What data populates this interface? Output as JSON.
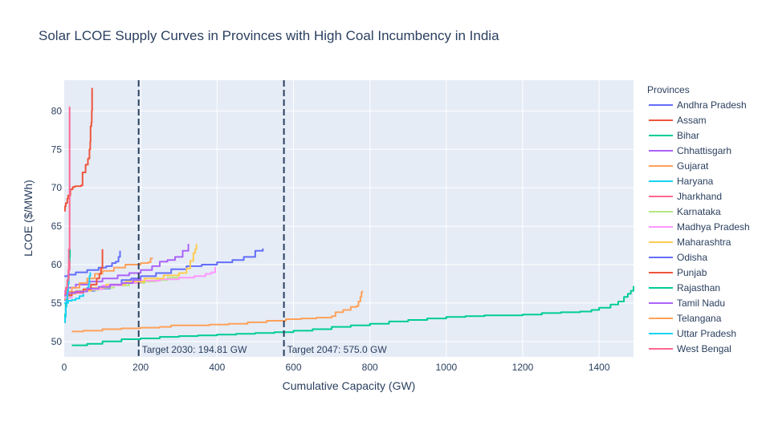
{
  "chart_data": {
    "type": "line",
    "title": "Solar LCOE Supply Curves in Provinces with High Coal Incumbency in India",
    "xlabel": "Cumulative Capacity (GW)",
    "ylabel": "LCOE ($/MWh)",
    "xlim": [
      0,
      1490
    ],
    "ylim": [
      48,
      84
    ],
    "xticks": [
      0,
      200,
      400,
      600,
      800,
      1000,
      1200,
      1400
    ],
    "yticks": [
      50,
      55,
      60,
      65,
      70,
      75,
      80
    ],
    "grid": true,
    "legend_title": "Provinces",
    "legend_position": "right",
    "background_color": "#e5ecf6",
    "vlines": [
      {
        "x": 194.81,
        "label": "Target 2030: 194.81 GW",
        "color": "#2a3f5f",
        "dash": "dashed"
      },
      {
        "x": 575.0,
        "label": "Target 2047: 575.0 GW",
        "color": "#2a3f5f",
        "dash": "dashed"
      }
    ],
    "series": [
      {
        "name": "Andhra Pradesh",
        "color": "#636efa",
        "points": [
          [
            0,
            55.4
          ],
          [
            5,
            56.0
          ],
          [
            15,
            56.4
          ],
          [
            40,
            56.6
          ],
          [
            80,
            56.9
          ],
          [
            120,
            57.3
          ],
          [
            150,
            58.0
          ],
          [
            175,
            58.2
          ],
          [
            200,
            58.5
          ],
          [
            240,
            58.9
          ],
          [
            280,
            59.4
          ],
          [
            320,
            59.8
          ],
          [
            360,
            60.0
          ],
          [
            400,
            60.3
          ],
          [
            440,
            60.6
          ],
          [
            470,
            61.0
          ],
          [
            500,
            61.8
          ],
          [
            520,
            62.1
          ]
        ]
      },
      {
        "name": "Assam",
        "color": "#ef553b",
        "points": [
          [
            0,
            67.0
          ],
          [
            2,
            67.6
          ],
          [
            4,
            68.0
          ],
          [
            8,
            68.6
          ],
          [
            10,
            69.0
          ],
          [
            16,
            69.8
          ],
          [
            22,
            70.1
          ],
          [
            28,
            70.2
          ],
          [
            36,
            70.2
          ],
          [
            44,
            70.3
          ],
          [
            48,
            72.0
          ],
          [
            56,
            73.0
          ],
          [
            62,
            73.8
          ],
          [
            66,
            75.0
          ],
          [
            68,
            76.0
          ],
          [
            69,
            78.0
          ],
          [
            71,
            78.5
          ],
          [
            72,
            80.0
          ],
          [
            73,
            83.0
          ]
        ]
      },
      {
        "name": "Bihar",
        "color": "#00cc96",
        "points": [
          [
            0,
            52.5
          ],
          [
            2,
            53.5
          ],
          [
            4,
            55.0
          ],
          [
            6,
            56.5
          ],
          [
            8,
            57.5
          ],
          [
            10,
            58.5
          ],
          [
            12,
            59.5
          ],
          [
            14,
            61.0
          ],
          [
            15,
            62.0
          ]
        ]
      },
      {
        "name": "Chhattisgarh",
        "color": "#ab63fa",
        "points": [
          [
            0,
            56.5
          ],
          [
            10,
            57.0
          ],
          [
            30,
            57.4
          ],
          [
            60,
            57.8
          ],
          [
            100,
            58.2
          ],
          [
            140,
            58.6
          ],
          [
            170,
            58.9
          ],
          [
            200,
            59.3
          ],
          [
            230,
            59.8
          ],
          [
            250,
            60.4
          ],
          [
            270,
            60.6
          ],
          [
            290,
            61.0
          ],
          [
            310,
            61.8
          ],
          [
            325,
            62.7
          ]
        ]
      },
      {
        "name": "Gujarat",
        "color": "#ffa15a",
        "points": [
          [
            0,
            55.5
          ],
          [
            10,
            56.5
          ],
          [
            20,
            57.0
          ],
          [
            40,
            57.6
          ],
          [
            60,
            58.2
          ],
          [
            80,
            58.8
          ],
          [
            100,
            59.2
          ],
          [
            130,
            59.6
          ],
          [
            160,
            60.0
          ],
          [
            200,
            60.2
          ],
          [
            220,
            60.3
          ],
          [
            226,
            60.8
          ],
          [
            232,
            60.8
          ]
        ]
      },
      {
        "name": "Haryana",
        "color": "#19d3f3",
        "points": [
          [
            0,
            55.0
          ],
          [
            10,
            55.3
          ],
          [
            20,
            55.4
          ],
          [
            30,
            55.6
          ],
          [
            40,
            55.9
          ],
          [
            50,
            56.5
          ],
          [
            60,
            57.0
          ],
          [
            64,
            57.5
          ],
          [
            66,
            58.5
          ],
          [
            68,
            59.0
          ]
        ]
      },
      {
        "name": "Jharkhand",
        "color": "#ff6692",
        "points": [
          [
            0,
            56.0
          ],
          [
            6,
            57.0
          ],
          [
            10,
            58.0
          ],
          [
            12,
            62.0
          ],
          [
            14,
            80.5
          ],
          [
            15,
            80.5
          ]
        ]
      },
      {
        "name": "Karnataka",
        "color": "#b6e880",
        "points": [
          [
            0,
            55.8
          ],
          [
            20,
            56.3
          ],
          [
            50,
            56.7
          ],
          [
            90,
            57.0
          ],
          [
            130,
            57.3
          ],
          [
            170,
            57.6
          ],
          [
            210,
            57.8
          ],
          [
            240,
            58.0
          ],
          [
            270,
            58.3
          ],
          [
            300,
            58.8
          ]
        ]
      },
      {
        "name": "Madhya Pradesh",
        "color": "#ff97ff",
        "points": [
          [
            0,
            55.7
          ],
          [
            20,
            56.3
          ],
          [
            50,
            56.8
          ],
          [
            100,
            57.3
          ],
          [
            150,
            57.6
          ],
          [
            200,
            57.9
          ],
          [
            250,
            58.1
          ],
          [
            300,
            58.3
          ],
          [
            340,
            58.5
          ],
          [
            370,
            58.8
          ],
          [
            385,
            59.0
          ],
          [
            395,
            59.7
          ]
        ]
      },
      {
        "name": "Maharashtra",
        "color": "#fecb52",
        "points": [
          [
            0,
            56.2
          ],
          [
            30,
            56.6
          ],
          [
            70,
            57.0
          ],
          [
            110,
            57.4
          ],
          [
            160,
            57.8
          ],
          [
            210,
            58.2
          ],
          [
            260,
            58.6
          ],
          [
            300,
            58.9
          ],
          [
            320,
            59.5
          ],
          [
            330,
            60.5
          ],
          [
            338,
            61.5
          ],
          [
            343,
            62.0
          ],
          [
            346,
            62.7
          ]
        ]
      },
      {
        "name": "Odisha",
        "color": "#636efa",
        "points": [
          [
            0,
            58.5
          ],
          [
            10,
            58.7
          ],
          [
            30,
            59.0
          ],
          [
            60,
            59.3
          ],
          [
            90,
            59.6
          ],
          [
            110,
            59.8
          ],
          [
            125,
            60.2
          ],
          [
            135,
            60.4
          ],
          [
            142,
            61.0
          ],
          [
            146,
            61.8
          ]
        ]
      },
      {
        "name": "Punjab",
        "color": "#ef553b",
        "points": [
          [
            0,
            56.0
          ],
          [
            20,
            56.4
          ],
          [
            50,
            56.8
          ],
          [
            70,
            57.4
          ],
          [
            85,
            58.2
          ],
          [
            92,
            58.8
          ],
          [
            96,
            59.5
          ],
          [
            100,
            62.0
          ]
        ]
      },
      {
        "name": "Rajasthan",
        "color": "#00cc96",
        "points": [
          [
            20,
            49.5
          ],
          [
            60,
            49.7
          ],
          [
            100,
            50.0
          ],
          [
            150,
            50.3
          ],
          [
            200,
            50.4
          ],
          [
            250,
            50.6
          ],
          [
            300,
            50.7
          ],
          [
            350,
            50.8
          ],
          [
            400,
            50.9
          ],
          [
            450,
            51.0
          ],
          [
            500,
            51.1
          ],
          [
            550,
            51.2
          ],
          [
            600,
            51.4
          ],
          [
            650,
            51.6
          ],
          [
            700,
            51.9
          ],
          [
            750,
            52.1
          ],
          [
            800,
            52.3
          ],
          [
            850,
            52.6
          ],
          [
            900,
            52.8
          ],
          [
            950,
            53.0
          ],
          [
            1000,
            53.2
          ],
          [
            1050,
            53.3
          ],
          [
            1100,
            53.4
          ],
          [
            1150,
            53.4
          ],
          [
            1200,
            53.5
          ],
          [
            1250,
            53.7
          ],
          [
            1300,
            53.8
          ],
          [
            1350,
            53.9
          ],
          [
            1380,
            54.1
          ],
          [
            1400,
            54.4
          ],
          [
            1430,
            54.8
          ],
          [
            1450,
            55.2
          ],
          [
            1465,
            55.8
          ],
          [
            1475,
            56.2
          ],
          [
            1483,
            56.6
          ],
          [
            1490,
            57.2
          ]
        ]
      },
      {
        "name": "Tamil Nadu",
        "color": "#ab63fa",
        "points": [
          [
            0,
            56.0
          ],
          [
            10,
            56.3
          ],
          [
            30,
            56.5
          ],
          [
            60,
            56.9
          ],
          [
            90,
            57.1
          ],
          [
            120,
            57.4
          ],
          [
            150,
            57.6
          ],
          [
            180,
            58.0
          ],
          [
            200,
            58.3
          ]
        ]
      },
      {
        "name": "Telangana",
        "color": "#ffa15a",
        "points": [
          [
            20,
            51.3
          ],
          [
            50,
            51.4
          ],
          [
            100,
            51.6
          ],
          [
            150,
            51.7
          ],
          [
            200,
            51.8
          ],
          [
            250,
            51.9
          ],
          [
            280,
            52.1
          ],
          [
            330,
            52.1
          ],
          [
            380,
            52.2
          ],
          [
            430,
            52.3
          ],
          [
            480,
            52.5
          ],
          [
            530,
            52.7
          ],
          [
            580,
            52.9
          ],
          [
            620,
            53.0
          ],
          [
            660,
            53.1
          ],
          [
            700,
            53.3
          ],
          [
            710,
            53.8
          ],
          [
            730,
            54.1
          ],
          [
            750,
            54.5
          ],
          [
            765,
            54.6
          ],
          [
            770,
            55.2
          ],
          [
            775,
            55.8
          ],
          [
            778,
            56.4
          ],
          [
            780,
            56.6
          ]
        ]
      },
      {
        "name": "Uttar Pradesh",
        "color": "#19d3f3",
        "points": [
          [
            0,
            52.5
          ],
          [
            2,
            53.2
          ],
          [
            4,
            54.5
          ],
          [
            6,
            55.5
          ],
          [
            8,
            56.5
          ],
          [
            10,
            57.5
          ],
          [
            12,
            58.2
          ]
        ]
      },
      {
        "name": "West Bengal",
        "color": "#ff6692",
        "points": [
          [
            0,
            56.2
          ],
          [
            4,
            57.0
          ],
          [
            8,
            58.0
          ],
          [
            11,
            59.3
          ],
          [
            14,
            60.5
          ]
        ]
      }
    ]
  }
}
